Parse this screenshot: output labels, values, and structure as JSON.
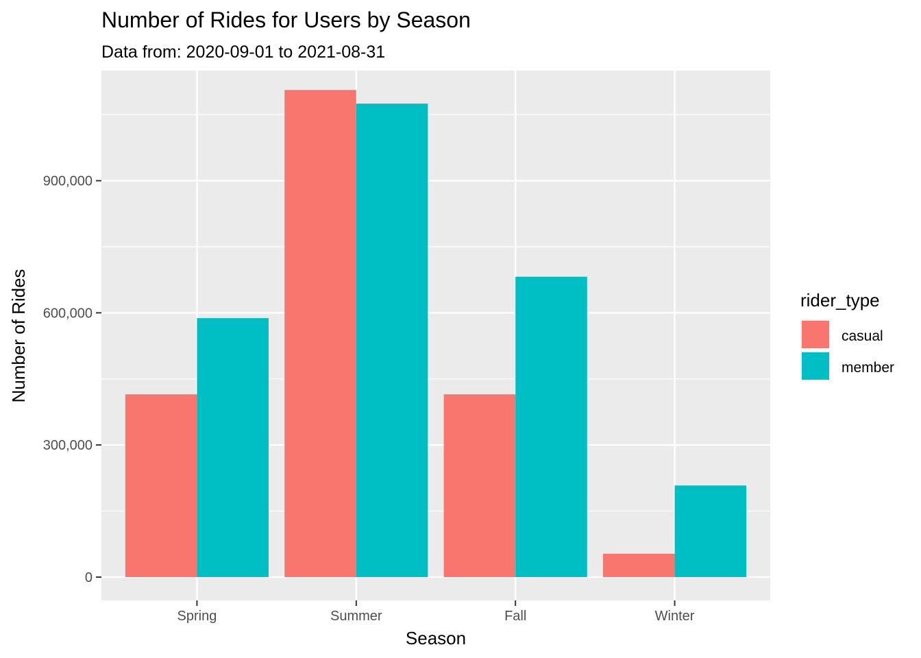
{
  "chart_data": {
    "type": "bar",
    "title": "Number of Rides for Users by Season",
    "subtitle": "Data from: 2020-09-01 to 2021-08-31",
    "xlabel": "Season",
    "ylabel": "Number of Rides",
    "categories": [
      "Spring",
      "Summer",
      "Fall",
      "Winter"
    ],
    "series": [
      {
        "name": "casual",
        "color": "#F8766D",
        "values": [
          415000,
          1106000,
          415000,
          53000
        ]
      },
      {
        "name": "member",
        "color": "#00BFC4",
        "values": [
          588000,
          1075000,
          682000,
          208000
        ]
      }
    ],
    "ylim": [
      -53000,
      1150000
    ],
    "yticks": [
      0,
      300000,
      600000,
      900000
    ],
    "ytick_labels": [
      "0",
      "300,000",
      "600,000",
      "900,000"
    ],
    "grid": true,
    "legend": {
      "title": "rider_type",
      "placement": "right",
      "items": [
        "casual",
        "member"
      ]
    },
    "colors": {
      "panel": "#EBEBEB",
      "grid": "#FFFFFF"
    }
  }
}
